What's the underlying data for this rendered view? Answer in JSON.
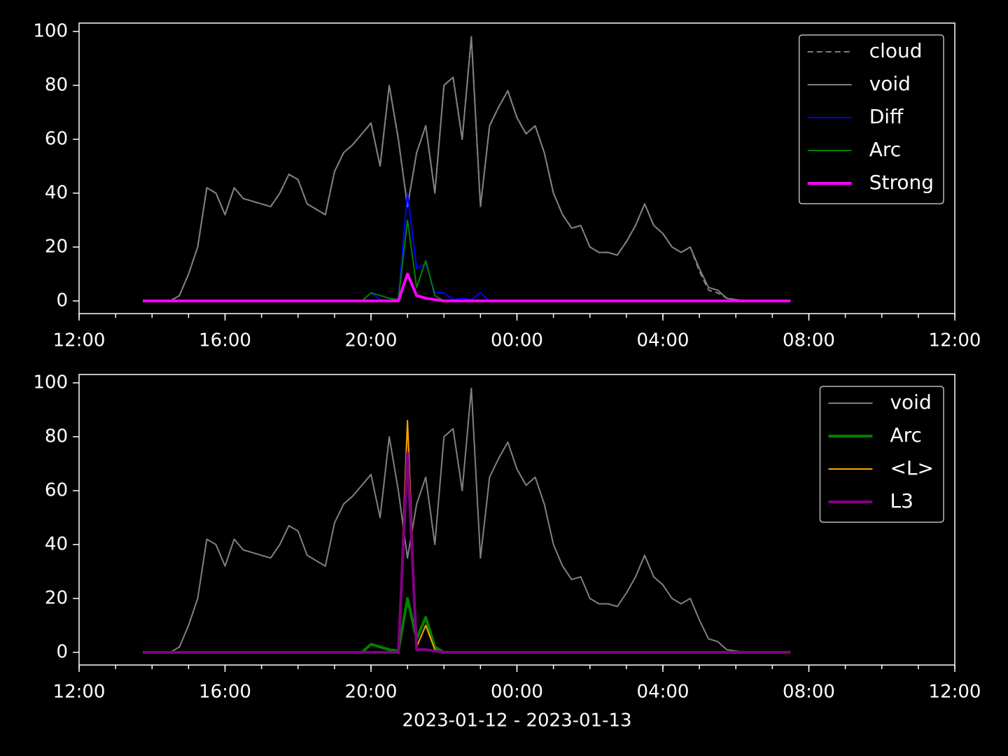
{
  "chart_data": [
    {
      "type": "line",
      "x": [
        1.75,
        2,
        2.25,
        2.5,
        2.75,
        3,
        3.25,
        3.5,
        3.75,
        4,
        4.25,
        4.5,
        4.75,
        5,
        5.25,
        5.5,
        5.75,
        6,
        6.25,
        6.5,
        6.75,
        7,
        7.25,
        7.5,
        7.75,
        8,
        8.25,
        8.5,
        8.75,
        9,
        9.25,
        9.5,
        9.75,
        10,
        10.25,
        10.5,
        10.75,
        11,
        11.25,
        11.5,
        11.75,
        12,
        12.25,
        12.5,
        12.75,
        13,
        13.25,
        13.5,
        13.75,
        14,
        14.25,
        14.5,
        14.75,
        15,
        15.25,
        15.5,
        15.75,
        16,
        16.25,
        16.5,
        16.75,
        17,
        17.25,
        17.5,
        17.75,
        18,
        18.25,
        18.5,
        18.75,
        19,
        19.25,
        19.5
      ],
      "xlim": [
        0,
        24
      ],
      "xticks": [
        {
          "value": 0,
          "label": "12:00"
        },
        {
          "value": 4,
          "label": "16:00"
        },
        {
          "value": 8,
          "label": "20:00"
        },
        {
          "value": 12,
          "label": "00:00"
        },
        {
          "value": 16,
          "label": "04:00"
        },
        {
          "value": 20,
          "label": "08:00"
        },
        {
          "value": 24,
          "label": "12:00"
        }
      ],
      "ylim": [
        -4.7,
        103.1
      ],
      "yticks": [
        0,
        20,
        40,
        60,
        80,
        100
      ],
      "legend": "upper right",
      "series": [
        {
          "name": "cloud",
          "color": "#808080",
          "linestyle": "dashed",
          "linewidth": 2,
          "values": [
            0,
            0,
            0,
            0,
            2,
            10,
            20,
            42,
            40,
            32,
            42,
            38,
            37,
            36,
            35,
            40,
            47,
            45,
            36,
            34,
            32,
            48,
            55,
            58,
            62,
            66,
            50,
            80,
            60,
            35,
            55,
            65,
            40,
            80,
            83,
            60,
            98,
            35,
            65,
            72,
            78,
            68,
            62,
            65,
            55,
            40,
            32,
            27,
            28,
            20,
            18,
            18,
            17,
            22,
            28,
            36,
            28,
            25,
            20,
            18,
            20,
            11,
            4,
            3,
            1,
            0,
            0,
            0,
            0,
            0,
            0,
            0
          ]
        },
        {
          "name": "void",
          "color": "#808080",
          "linestyle": "solid",
          "linewidth": 2,
          "values": [
            0,
            0,
            0,
            0,
            2,
            10,
            20,
            42,
            40,
            32,
            42,
            38,
            37,
            36,
            35,
            40,
            47,
            45,
            36,
            34,
            32,
            48,
            55,
            58,
            62,
            66,
            50,
            80,
            60,
            35,
            55,
            65,
            40,
            80,
            83,
            60,
            98,
            35,
            65,
            72,
            78,
            68,
            62,
            65,
            55,
            40,
            32,
            27,
            28,
            20,
            18,
            18,
            17,
            22,
            28,
            36,
            28,
            25,
            20,
            18,
            20,
            12,
            5,
            4,
            1,
            0.5,
            0,
            0,
            0,
            0,
            0,
            0
          ]
        },
        {
          "name": "Diff",
          "color": "#0000ff",
          "linestyle": "solid",
          "linewidth": 2,
          "values": [
            0,
            0,
            0,
            0,
            0,
            0,
            0,
            0,
            0,
            0,
            0,
            0,
            0,
            0,
            0,
            0,
            0,
            0,
            0,
            0,
            0,
            0,
            0,
            0,
            0,
            3,
            0.5,
            0,
            0.5,
            40,
            12,
            14,
            3,
            3,
            0.5,
            1,
            0.5,
            3,
            0,
            0,
            0,
            0,
            0,
            0,
            0,
            0,
            0,
            0,
            0,
            0,
            0,
            0,
            0,
            0,
            0,
            0,
            0,
            0,
            0,
            0,
            0,
            0,
            0,
            0,
            0,
            0,
            0,
            0,
            0,
            0,
            0,
            0
          ]
        },
        {
          "name": "Arc",
          "color": "#008000",
          "linestyle": "solid",
          "linewidth": 2,
          "values": [
            0,
            0,
            0,
            0,
            0,
            0,
            0,
            0,
            0,
            0,
            0,
            0,
            0,
            0,
            0,
            0,
            0,
            0,
            0,
            0,
            0,
            0,
            0,
            0,
            0,
            3,
            2,
            1,
            0.5,
            30,
            5,
            15,
            2,
            0,
            0,
            0,
            0,
            0,
            0,
            0,
            0,
            0,
            0,
            0,
            0,
            0,
            0,
            0,
            0,
            0,
            0,
            0,
            0,
            0,
            0,
            0,
            0,
            0,
            0,
            0,
            0,
            0,
            0,
            0,
            0,
            0,
            0,
            0,
            0,
            0,
            0,
            0
          ]
        },
        {
          "name": "Strong",
          "color": "#ff00ff",
          "linestyle": "solid",
          "linewidth": 4,
          "values": [
            0,
            0,
            0,
            0,
            0,
            0,
            0,
            0,
            0,
            0,
            0,
            0,
            0,
            0,
            0,
            0,
            0,
            0,
            0,
            0,
            0,
            0,
            0,
            0,
            0,
            0,
            0,
            0,
            0,
            10,
            2,
            1,
            0.5,
            0,
            0,
            0,
            0,
            0,
            0,
            0,
            0,
            0,
            0,
            0,
            0,
            0,
            0,
            0,
            0,
            0,
            0,
            0,
            0,
            0,
            0,
            0,
            0,
            0,
            0,
            0,
            0,
            0,
            0,
            0,
            0,
            0,
            0,
            0,
            0,
            0,
            0,
            0
          ]
        }
      ]
    },
    {
      "type": "line",
      "x_label": "2023-01-12 - 2023-01-13",
      "x": [
        1.75,
        2,
        2.25,
        2.5,
        2.75,
        3,
        3.25,
        3.5,
        3.75,
        4,
        4.25,
        4.5,
        4.75,
        5,
        5.25,
        5.5,
        5.75,
        6,
        6.25,
        6.5,
        6.75,
        7,
        7.25,
        7.5,
        7.75,
        8,
        8.25,
        8.5,
        8.75,
        9,
        9.25,
        9.5,
        9.75,
        10,
        10.25,
        10.5,
        10.75,
        11,
        11.25,
        11.5,
        11.75,
        12,
        12.25,
        12.5,
        12.75,
        13,
        13.25,
        13.5,
        13.75,
        14,
        14.25,
        14.5,
        14.75,
        15,
        15.25,
        15.5,
        15.75,
        16,
        16.25,
        16.5,
        16.75,
        17,
        17.25,
        17.5,
        17.75,
        18,
        18.25,
        18.5,
        18.75,
        19,
        19.25,
        19.5
      ],
      "xlim": [
        0,
        24
      ],
      "xticks": [
        {
          "value": 0,
          "label": "12:00"
        },
        {
          "value": 4,
          "label": "16:00"
        },
        {
          "value": 8,
          "label": "20:00"
        },
        {
          "value": 12,
          "label": "00:00"
        },
        {
          "value": 16,
          "label": "04:00"
        },
        {
          "value": 20,
          "label": "08:00"
        },
        {
          "value": 24,
          "label": "12:00"
        }
      ],
      "ylim": [
        -4.7,
        103.1
      ],
      "yticks": [
        0,
        20,
        40,
        60,
        80,
        100
      ],
      "legend": "upper right",
      "series": [
        {
          "name": "void",
          "color": "#808080",
          "linestyle": "solid",
          "linewidth": 2,
          "values": [
            0,
            0,
            0,
            0,
            2,
            10,
            20,
            42,
            40,
            32,
            42,
            38,
            37,
            36,
            35,
            40,
            47,
            45,
            36,
            34,
            32,
            48,
            55,
            58,
            62,
            66,
            50,
            80,
            60,
            35,
            55,
            65,
            40,
            80,
            83,
            60,
            98,
            35,
            65,
            72,
            78,
            68,
            62,
            65,
            55,
            40,
            32,
            27,
            28,
            20,
            18,
            18,
            17,
            22,
            28,
            36,
            28,
            25,
            20,
            18,
            20,
            12,
            5,
            4,
            1,
            0.5,
            0,
            0,
            0,
            0,
            0,
            0
          ]
        },
        {
          "name": "Arc",
          "color": "#008000",
          "linestyle": "solid",
          "linewidth": 4,
          "values": [
            0,
            0,
            0,
            0,
            0,
            0,
            0,
            0,
            0,
            0,
            0,
            0,
            0,
            0,
            0,
            0,
            0,
            0,
            0,
            0,
            0,
            0,
            0,
            0,
            0,
            3,
            2,
            1,
            0.5,
            20,
            5,
            13,
            2,
            0,
            0,
            0,
            0,
            0,
            0,
            0,
            0,
            0,
            0,
            0,
            0,
            0,
            0,
            0,
            0,
            0,
            0,
            0,
            0,
            0,
            0,
            0,
            0,
            0,
            0,
            0,
            0,
            0,
            0,
            0,
            0,
            0,
            0,
            0,
            0,
            0,
            0,
            0
          ]
        },
        {
          "name": "<L>",
          "color": "#ffa500",
          "linestyle": "solid",
          "linewidth": 2,
          "values": [
            0,
            0,
            0,
            0,
            0,
            0,
            0,
            0,
            0,
            0,
            0,
            0,
            0,
            0,
            0,
            0,
            0,
            0,
            0,
            0,
            0,
            0,
            0,
            0,
            0,
            0,
            0,
            0,
            0,
            86,
            2,
            10,
            1,
            0,
            0,
            0,
            0,
            0,
            0,
            0,
            0,
            0,
            0,
            0,
            0,
            0,
            0,
            0,
            0,
            0,
            0,
            0,
            0,
            0,
            0,
            0,
            0,
            0,
            0,
            0,
            0,
            0,
            0,
            0,
            0,
            0,
            0,
            0,
            0,
            0,
            0,
            0
          ]
        },
        {
          "name": "L3",
          "color": "#800080",
          "linestyle": "solid",
          "linewidth": 4,
          "values": [
            0,
            0,
            0,
            0,
            0,
            0,
            0,
            0,
            0,
            0,
            0,
            0,
            0,
            0,
            0,
            0,
            0,
            0,
            0,
            0,
            0,
            0,
            0,
            0,
            0,
            0,
            0,
            0,
            0,
            74,
            1,
            1,
            0.5,
            0,
            0,
            0,
            0,
            0,
            0,
            0,
            0,
            0,
            0,
            0,
            0,
            0,
            0,
            0,
            0,
            0,
            0,
            0,
            0,
            0,
            0,
            0,
            0,
            0,
            0,
            0,
            0,
            0,
            0,
            0,
            0,
            0,
            0,
            0,
            0,
            0,
            0,
            0
          ]
        }
      ]
    }
  ]
}
